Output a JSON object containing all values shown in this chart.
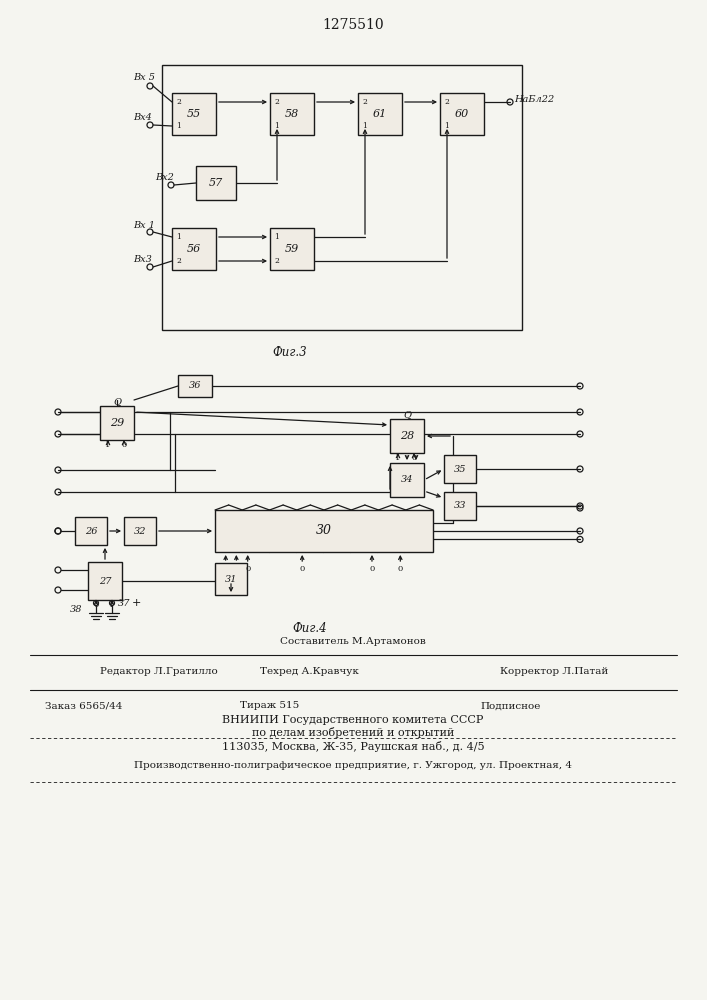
{
  "title": "1275510",
  "fig3_label": "Фиг.3",
  "fig4_label": "Фиг.4",
  "background_color": "#f5f5f0",
  "line_color": "#1a1a1a",
  "text_color": "#1a1a1a",
  "footer": {
    "composer": "Составитель М.Артамонов",
    "editor": "Редактор Л.Гратилло",
    "techred": "Техред А.Кравчук",
    "corrector": "Корректор Л.Патай",
    "order": "Заказ 6565/44",
    "tirazh": "Тираж 515",
    "podpisnoe": "Подписное",
    "vniip1": "ВНИИПИ Государственного комитета СССР",
    "vniip2": "по делам изобретений и открытий",
    "vniip3": "113035, Москва, Ж-35, Раушская наб., д. 4/5",
    "factory": "Производственно-полиграфическое предприятие, г. Ужгород, ул. Проектная, 4"
  }
}
